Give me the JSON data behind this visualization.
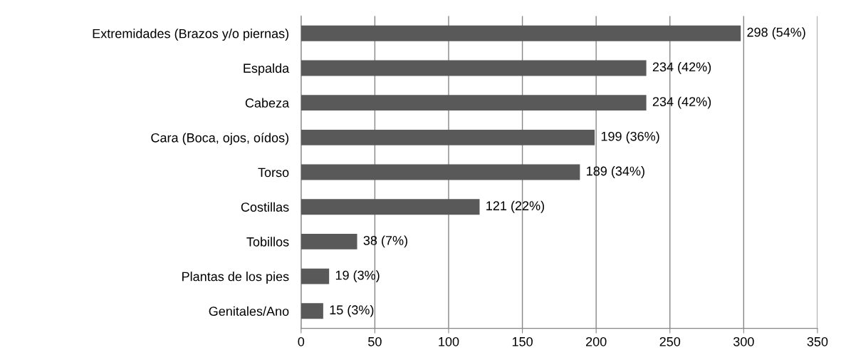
{
  "chart_data": {
    "type": "bar",
    "orientation": "horizontal",
    "categories": [
      "Extremidades (Brazos y/o piernas)",
      "Espalda",
      "Cabeza",
      "Cara (Boca, ojos, oídos)",
      "Torso",
      "Costillas",
      "Tobillos",
      "Plantas de los pies",
      "Genitales/Ano"
    ],
    "values": [
      298,
      234,
      234,
      199,
      189,
      121,
      38,
      19,
      15
    ],
    "value_labels": [
      "298 (54%)",
      "234 (42%)",
      "234 (42%)",
      "199 (36%)",
      "189 (34%)",
      "121 (22%)",
      "38 (7%)",
      "19 (3%)",
      "15 (3%)"
    ],
    "color": "#595959",
    "xlim": [
      0,
      350
    ],
    "xticks": [
      0,
      50,
      100,
      150,
      200,
      250,
      300,
      350
    ],
    "grid": "x"
  }
}
